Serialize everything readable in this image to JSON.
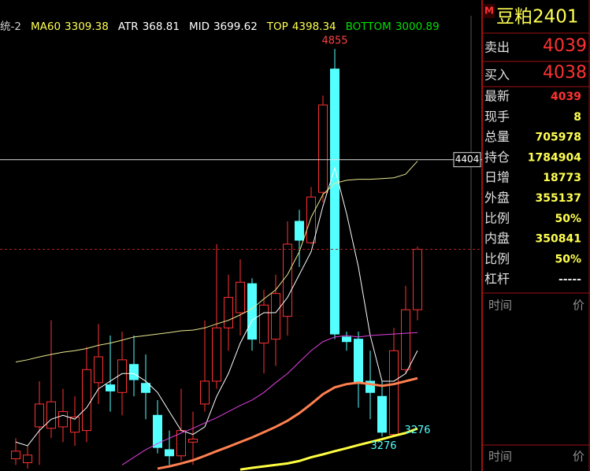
{
  "chart_data": {
    "type": "candlestick",
    "ylim": [
      3136.2,
      4990
    ],
    "open": [
      3186,
      3170,
      3316,
      3310,
      3316,
      3294,
      3301,
      3496,
      3487,
      3456,
      3570,
      3493,
      3363,
      3223,
      3198,
      3254,
      3409,
      3502,
      3719,
      3781,
      3899,
      3657,
      3673,
      3766,
      4153,
      4066,
      4271,
      4773,
      3682,
      3673,
      3502,
      3440,
      3285,
      3549,
      3793
    ],
    "high": [
      3270,
      3239,
      3502,
      3750,
      3471,
      3440,
      3642,
      3735,
      3688,
      3704,
      3688,
      3611,
      3425,
      3301,
      3471,
      3378,
      3750,
      4060,
      3936,
      3998,
      3921,
      3874,
      3936,
      4153,
      4200,
      4293,
      4665,
      4855,
      3704,
      3704,
      3626,
      3502,
      3719,
      3890,
      4050
    ],
    "low": [
      3161,
      3146,
      3161,
      3270,
      3254,
      3239,
      3254,
      3409,
      3378,
      3363,
      3440,
      3347,
      3208,
      3161,
      3177,
      3161,
      3378,
      3471,
      3626,
      3688,
      3626,
      3533,
      3564,
      3688,
      3967,
      4060,
      4231,
      3673,
      3626,
      3394,
      3347,
      3276,
      3276,
      3533,
      3750
    ],
    "close": [
      3217,
      3201,
      3409,
      3418,
      3378,
      3356,
      3549,
      3601,
      3462,
      3589,
      3508,
      3456,
      3232,
      3198,
      3301,
      3266,
      3502,
      3719,
      3843,
      3905,
      3673,
      3812,
      3859,
      4060,
      4076,
      4252,
      4627,
      3694,
      3663,
      3493,
      3456,
      3294,
      3626,
      3793,
      4039
    ],
    "up_color": "#ff3232",
    "down_color": "#54ffff",
    "series": [
      {
        "color": "#ffffff",
        "line_width": 1,
        "values": [
          3254,
          3239,
          3301,
          3347,
          3363,
          3347,
          3394,
          3471,
          3502,
          3533,
          3533,
          3502,
          3456,
          3378,
          3301,
          3285,
          3316,
          3440,
          3533,
          3657,
          3750,
          3781,
          3781,
          3843,
          3936,
          4029,
          4215,
          4370,
          4184,
          3967,
          3688,
          3502,
          3502,
          3533,
          3626
        ]
      },
      {
        "color": "#e8e890",
        "line_width": 1,
        "values": [
          3580,
          3589,
          3601,
          3611,
          3620,
          3626,
          3635,
          3648,
          3657,
          3669,
          3682,
          3688,
          3694,
          3700,
          3707,
          3710,
          3719,
          3735,
          3750,
          3772,
          3797,
          3837,
          3874,
          3936,
          4029,
          4169,
          4262,
          4308,
          4320,
          4324,
          4324,
          4327,
          4330,
          4345,
          4398
        ]
      },
      {
        "color": "#e040e0",
        "line_width": 1,
        "values": [
          null,
          null,
          null,
          null,
          null,
          null,
          null,
          null,
          null,
          3161,
          3192,
          3223,
          3248,
          3270,
          3291,
          3310,
          3332,
          3353,
          3378,
          3403,
          3425,
          3456,
          3496,
          3533,
          3580,
          3626,
          3663,
          3682,
          3688,
          3682,
          3688,
          3691,
          3694,
          3697,
          3700
        ]
      },
      {
        "color": "#ff8050",
        "line_width": 3,
        "values": [
          null,
          null,
          null,
          null,
          null,
          null,
          null,
          null,
          null,
          null,
          null,
          null,
          3146,
          3155,
          3167,
          3180,
          3198,
          3217,
          3235,
          3254,
          3273,
          3294,
          3316,
          3341,
          3372,
          3409,
          3449,
          3477,
          3490,
          3496,
          3490,
          3483,
          3490,
          3502,
          3514
        ]
      },
      {
        "color": "#ffff40",
        "line_width": 3,
        "values": [
          null,
          null,
          null,
          null,
          null,
          null,
          null,
          null,
          null,
          null,
          null,
          null,
          null,
          null,
          null,
          null,
          null,
          null,
          null,
          3142,
          3149,
          3155,
          3161,
          3167,
          3177,
          3192,
          3204,
          3217,
          3229,
          3242,
          3254,
          3266,
          3279,
          3291,
          3309
        ]
      }
    ],
    "crosshair": {
      "value": 4404,
      "label": "4404"
    },
    "high_label": 27,
    "low_labels": [
      31,
      32
    ]
  },
  "indicator_bar": {
    "label": "统-2",
    "label_color": "#d0d0d0",
    "items": [
      {
        "name": "MA60",
        "value": 3309.38,
        "color": "#ffff50"
      },
      {
        "name": "ATR",
        "value": 368.81,
        "color": "#ffffff"
      },
      {
        "name": "MID",
        "value": 3699.62,
        "color": "#ffffff"
      },
      {
        "name": "TOP",
        "value": 4398.34,
        "color": "#ffff50"
      },
      {
        "name": "BOTTOM",
        "value": 3000.89,
        "color": "#00e000"
      }
    ]
  },
  "side_panel": {
    "badge": "M",
    "title": "豆粕2401",
    "ask": {
      "label": "卖出",
      "value": 4039
    },
    "bid": {
      "label": "买入",
      "value": 4038
    },
    "rows": [
      {
        "label": "最新",
        "value": 4039,
        "color": "#ff3232"
      },
      {
        "label": "现手",
        "value": 8,
        "color": "#ffff50"
      },
      {
        "label": "总量",
        "value": 705978,
        "color": "#ffff50"
      },
      {
        "label": "持仓",
        "value": 1784904,
        "color": "#ffff50"
      },
      {
        "label": "日增",
        "value": 18773,
        "color": "#ffff50"
      },
      {
        "label": "外盘",
        "value": 355137,
        "color": "#ffff50"
      },
      {
        "label": "比例",
        "value": "50%",
        "color": "#ffff50"
      },
      {
        "label": "内盘",
        "value": 350841,
        "color": "#ffff50"
      },
      {
        "label": "比例",
        "value": "50%",
        "color": "#ffff50"
      },
      {
        "label": "杠杆",
        "value": "-----",
        "color": "#e0e0e0"
      }
    ],
    "columns": [
      "时间",
      "价"
    ],
    "lower_columns": [
      "时间",
      "价"
    ]
  }
}
